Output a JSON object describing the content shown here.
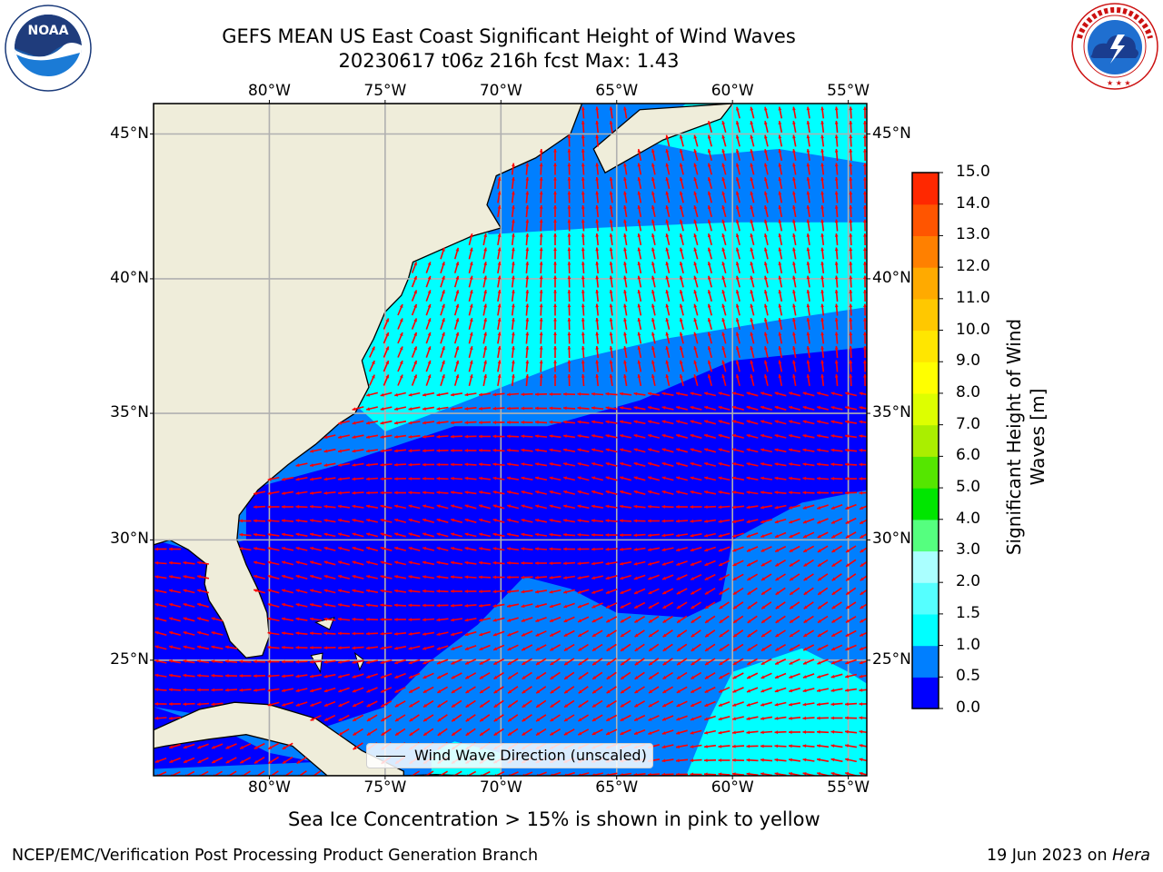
{
  "title": {
    "line1": "GEFS MEAN US East Coast Significant Height of Wind Waves",
    "line2": "20230617 t06z 216h fcst   Max: 1.43"
  },
  "logos": {
    "noaa": {
      "text": "NOAA",
      "ring_text": "NATIONAL OCEANIC AND ATMOSPHERIC ADMINISTRATION · U.S. DEPARTMENT OF COMMERCE"
    },
    "nws": {
      "ring_text": "NATIONAL WEATHER SERVICE"
    }
  },
  "map": {
    "lon_labels": [
      "80°W",
      "75°W",
      "70°W",
      "65°W",
      "60°W",
      "55°W"
    ],
    "lat_labels": [
      "45°N",
      "40°N",
      "35°N",
      "30°N",
      "25°N"
    ],
    "lon_range": [
      -85,
      -54.2
    ],
    "lat_range": [
      20,
      46
    ],
    "gridlines": true,
    "colors": {
      "land": "#efedda",
      "grid": "#b0b0b0",
      "arrows": "#ff0000",
      "coast": "#000000"
    },
    "legend_label": "Wind Wave Direction (unscaled)"
  },
  "colorbar": {
    "label": "Significant Height of Wind Waves [m]",
    "label_lines": [
      "Significant Height of Wind",
      "Waves [m]"
    ],
    "bounds": [
      0.0,
      0.5,
      1.0,
      1.5,
      2.0,
      3.0,
      4.0,
      5.0,
      6.0,
      7.0,
      8.0,
      9.0,
      10.0,
      11.0,
      12.0,
      13.0,
      14.0,
      15.0
    ],
    "tick_labels": [
      "0.0",
      "0.5",
      "1.0",
      "1.5",
      "2.0",
      "3.0",
      "4.0",
      "5.0",
      "6.0",
      "7.0",
      "8.0",
      "9.0",
      "10.0",
      "11.0",
      "12.0",
      "13.0",
      "14.0",
      "15.0"
    ],
    "colors": [
      "#0000ff",
      "#007fff",
      "#00ffff",
      "#55ffff",
      "#aaffff",
      "#55ff7f",
      "#00e600",
      "#55e600",
      "#aaee00",
      "#ddff00",
      "#ffff00",
      "#ffe600",
      "#ffc800",
      "#ffaa00",
      "#ff8000",
      "#ff5500",
      "#ff2800",
      "#ff0000"
    ]
  },
  "footer": {
    "note": "Sea Ice Concentration > 15% is shown in pink to yellow",
    "left": "NCEP/EMC/Verification Post Processing Product Generation Branch",
    "right_date": "19 Jun 2023 on ",
    "right_host": "Hera"
  }
}
